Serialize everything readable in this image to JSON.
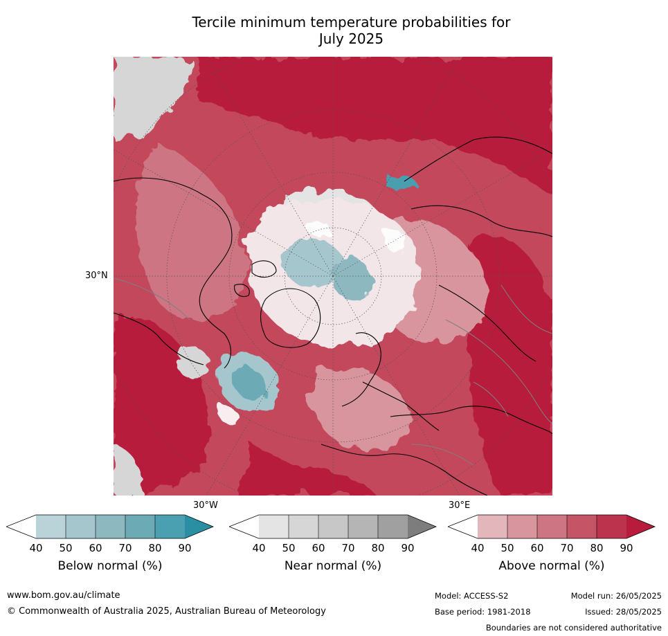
{
  "title": {
    "line1": "Tercile minimum temperature probabilities for",
    "line2": "July 2025"
  },
  "map": {
    "projection": "north-polar-stereographic",
    "lat_label": "30°N",
    "lon_labels": [
      "30°W",
      "30°E"
    ],
    "colors": {
      "land_outline": "#000000",
      "borders": "#808080",
      "gridlines": "#555555",
      "above_dominant": "#b81c3c",
      "below_dominant": "#4aa0b0",
      "near_dominant": "#d6d6d6"
    }
  },
  "colorbars": [
    {
      "label": "Below normal (%)",
      "ticks": [
        "40",
        "50",
        "60",
        "70",
        "80",
        "90"
      ],
      "colors": [
        "#ffffff",
        "#b9d3d9",
        "#a5c6cc",
        "#8db8c0",
        "#6caab6",
        "#4a9fb0",
        "#2b8fa3"
      ]
    },
    {
      "label": "Near normal (%)",
      "ticks": [
        "40",
        "50",
        "60",
        "70",
        "80",
        "90"
      ],
      "colors": [
        "#ffffff",
        "#e4e4e4",
        "#d6d6d6",
        "#c7c7c7",
        "#b5b5b5",
        "#a0a0a0",
        "#7d7d7d"
      ]
    },
    {
      "label": "Above normal (%)",
      "ticks": [
        "40",
        "50",
        "60",
        "70",
        "80",
        "90"
      ],
      "colors": [
        "#ffffff",
        "#e3b6bc",
        "#d8959e",
        "#cd7582",
        "#c45466",
        "#bc334d",
        "#b81c3c"
      ]
    }
  ],
  "footer": {
    "website": "www.bom.gov.au/climate",
    "copyright": "© Commonwealth of Australia 2025, Australian Bureau of Meteorology",
    "model": "Model: ACCESS-S2",
    "base_period": "Base period: 1981-2018",
    "model_run": "Model run: 26/05/2025",
    "issued": "Issued: 28/05/2025",
    "disclaimer": "Boundaries are not considered authoritative"
  }
}
